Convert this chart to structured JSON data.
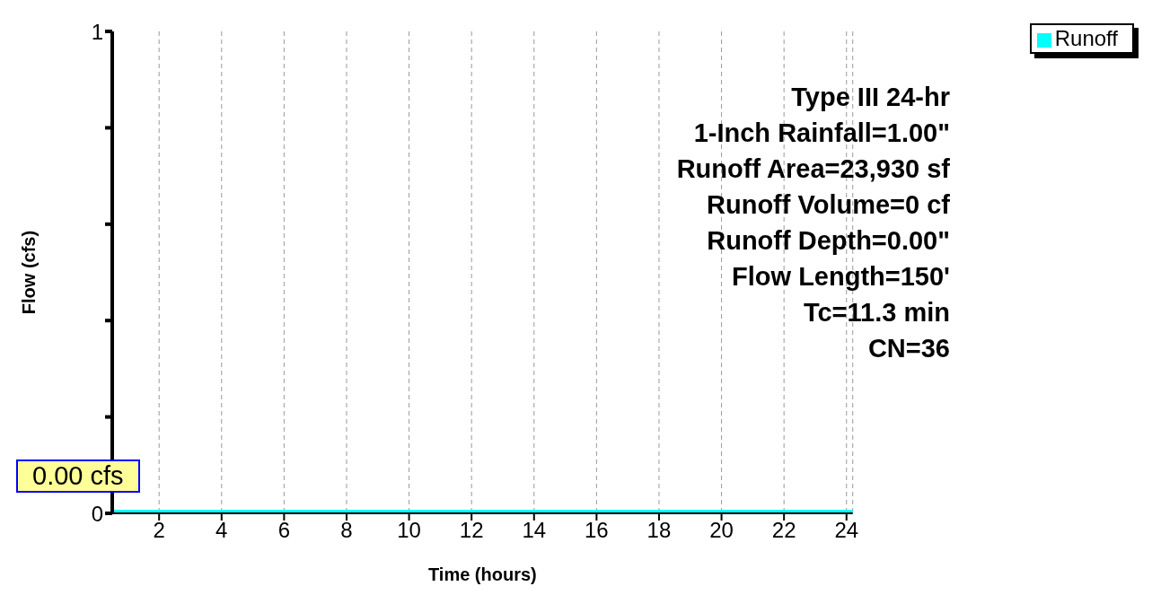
{
  "chart_data": {
    "type": "line",
    "xlabel": "Time  (hours)",
    "ylabel": "Flow  (cfs)",
    "x": [
      0.5,
      24.2
    ],
    "series": [
      {
        "name": "Runoff",
        "color": "#00ffff",
        "values": [
          0,
          0
        ]
      }
    ],
    "xlim": [
      0.5,
      24.2
    ],
    "xticks": [
      2,
      4,
      6,
      8,
      10,
      12,
      14,
      16,
      18,
      20,
      22,
      24
    ],
    "ylim": [
      0,
      1
    ],
    "yticks": [
      0,
      {
        "value": 0.2,
        "label": null
      },
      {
        "value": 0.4,
        "label": null
      },
      {
        "value": 0.6,
        "label": null
      },
      {
        "value": 0.8,
        "label": null
      },
      1
    ],
    "grid": "x",
    "legend": "top right",
    "marker": "none",
    "annotations": [
      "Type III 24-hr",
      "1-Inch Rainfall=1.00\"",
      "Runoff Area=23,930 sf",
      "Runoff Volume=0 cf",
      "Runoff Depth=0.00\"",
      "Flow Length=150'",
      "Tc=11.3 min",
      "CN=36",
      "0.00 cfs"
    ]
  }
}
